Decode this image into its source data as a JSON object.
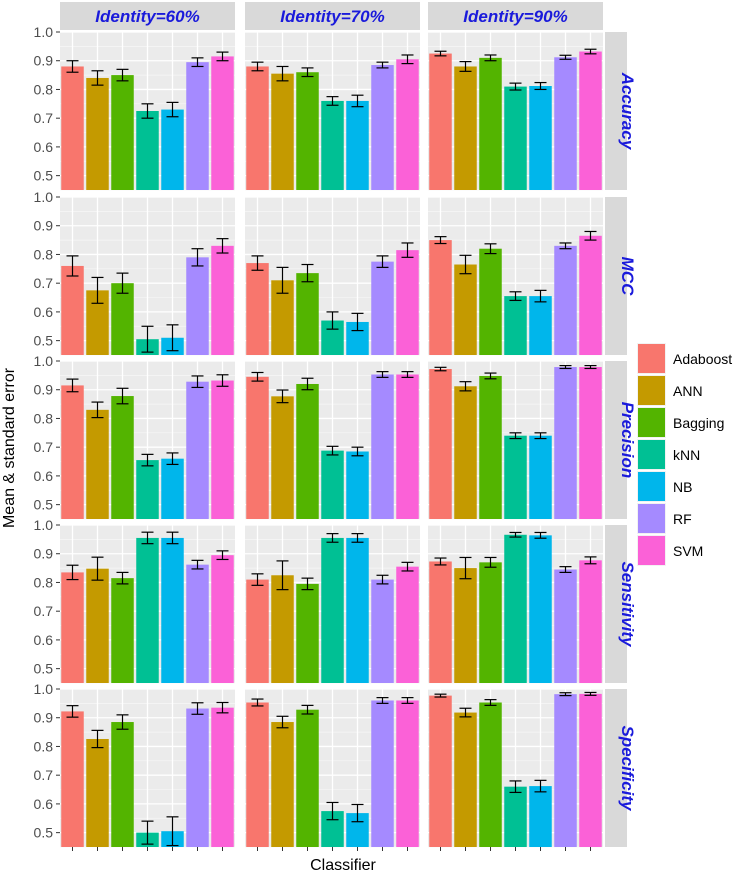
{
  "chart_data": {
    "type": "bar",
    "xlabel": "Classifier",
    "ylabel": "Mean & standard error",
    "ylim": [
      0.45,
      1.0
    ],
    "yticks": [
      "0.5",
      "0.6",
      "0.7",
      "0.8",
      "0.9",
      "1.0"
    ],
    "column_facets": [
      "Identity=60%",
      "Identity=70%",
      "Identity=90%"
    ],
    "row_facets": [
      "Accuracy",
      "MCC",
      "Precision",
      "Sensitivity",
      "Specificity"
    ],
    "legend_position": "right",
    "categories": [
      "Adaboost",
      "ANN",
      "Bagging",
      "kNN",
      "NB",
      "RF",
      "SVM"
    ],
    "colors": [
      "#F8766D",
      "#C49A00",
      "#53B400",
      "#00C094",
      "#00B6EB",
      "#A58AFF",
      "#FB61D7"
    ],
    "panels": [
      [
        {
          "values": [
            0.88,
            0.84,
            0.85,
            0.725,
            0.73,
            0.895,
            0.915
          ],
          "errors": [
            0.02,
            0.025,
            0.02,
            0.025,
            0.025,
            0.015,
            0.015
          ]
        },
        {
          "values": [
            0.88,
            0.855,
            0.86,
            0.76,
            0.76,
            0.885,
            0.905
          ],
          "errors": [
            0.015,
            0.025,
            0.015,
            0.015,
            0.02,
            0.01,
            0.015
          ]
        },
        {
          "values": [
            0.925,
            0.88,
            0.91,
            0.81,
            0.812,
            0.912,
            0.932
          ],
          "errors": [
            0.008,
            0.017,
            0.01,
            0.012,
            0.012,
            0.007,
            0.008
          ]
        }
      ],
      [
        {
          "values": [
            0.76,
            0.675,
            0.7,
            0.505,
            0.51,
            0.79,
            0.83
          ],
          "errors": [
            0.035,
            0.045,
            0.035,
            0.045,
            0.045,
            0.03,
            0.025
          ]
        },
        {
          "values": [
            0.77,
            0.71,
            0.735,
            0.57,
            0.565,
            0.775,
            0.815
          ],
          "errors": [
            0.025,
            0.045,
            0.03,
            0.03,
            0.03,
            0.02,
            0.025
          ]
        },
        {
          "values": [
            0.85,
            0.765,
            0.82,
            0.655,
            0.655,
            0.83,
            0.865
          ],
          "errors": [
            0.012,
            0.032,
            0.017,
            0.015,
            0.02,
            0.01,
            0.015
          ]
        }
      ],
      [
        {
          "values": [
            0.915,
            0.83,
            0.878,
            0.655,
            0.66,
            0.928,
            0.932
          ],
          "errors": [
            0.022,
            0.027,
            0.027,
            0.02,
            0.02,
            0.02,
            0.02
          ]
        },
        {
          "values": [
            0.945,
            0.877,
            0.92,
            0.688,
            0.685,
            0.953,
            0.953
          ],
          "errors": [
            0.015,
            0.022,
            0.02,
            0.015,
            0.015,
            0.01,
            0.01
          ]
        },
        {
          "values": [
            0.972,
            0.912,
            0.948,
            0.74,
            0.74,
            0.979,
            0.979
          ],
          "errors": [
            0.006,
            0.016,
            0.01,
            0.01,
            0.01,
            0.005,
            0.005
          ]
        }
      ],
      [
        {
          "values": [
            0.835,
            0.848,
            0.815,
            0.955,
            0.955,
            0.862,
            0.895
          ],
          "errors": [
            0.025,
            0.04,
            0.02,
            0.02,
            0.02,
            0.015,
            0.015
          ]
        },
        {
          "values": [
            0.81,
            0.825,
            0.795,
            0.955,
            0.955,
            0.81,
            0.855
          ],
          "errors": [
            0.02,
            0.05,
            0.02,
            0.015,
            0.015,
            0.015,
            0.015
          ]
        },
        {
          "values": [
            0.873,
            0.85,
            0.87,
            0.966,
            0.964,
            0.845,
            0.877
          ],
          "errors": [
            0.012,
            0.037,
            0.017,
            0.008,
            0.01,
            0.01,
            0.012
          ]
        }
      ],
      [
        {
          "values": [
            0.922,
            0.826,
            0.885,
            0.5,
            0.505,
            0.932,
            0.935
          ],
          "errors": [
            0.02,
            0.03,
            0.025,
            0.04,
            0.05,
            0.02,
            0.018
          ]
        },
        {
          "values": [
            0.953,
            0.885,
            0.928,
            0.575,
            0.568,
            0.96,
            0.96
          ],
          "errors": [
            0.012,
            0.02,
            0.015,
            0.03,
            0.03,
            0.01,
            0.01
          ]
        },
        {
          "values": [
            0.977,
            0.918,
            0.953,
            0.66,
            0.662,
            0.982,
            0.983
          ],
          "errors": [
            0.005,
            0.015,
            0.01,
            0.02,
            0.02,
            0.005,
            0.005
          ]
        }
      ]
    ]
  }
}
